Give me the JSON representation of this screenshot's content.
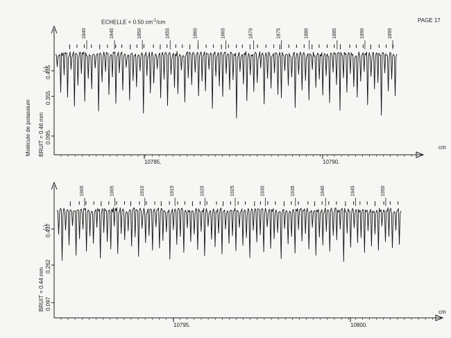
{
  "page": {
    "scale_label": "ECHELLE = 0.50 cm",
    "scale_superscript": "-1",
    "scale_suffix": "/cm",
    "page_label": "PAGE 17",
    "molecule_label": "Molécule de potassium",
    "x_unit": "cm"
  },
  "chart_data": [
    {
      "type": "line",
      "title": "",
      "noise_label": "BRUIT = 0.46 mm",
      "sign_label": "(-)",
      "xlabel": "cm",
      "ylabel": "",
      "x_ticks": [
        "10785.",
        "10790."
      ],
      "y_ticks": [
        "0.435",
        "0.355",
        "0.095"
      ],
      "lines": [
        "1840",
        "1845",
        "1850",
        "1855",
        "1860",
        "1865",
        "1870",
        "1875",
        "1880",
        "1885",
        "1890",
        "1895"
      ],
      "depths": [
        0.18,
        0.55,
        0.3,
        0.62,
        0.22,
        0.75,
        0.45,
        0.28,
        0.68,
        0.35,
        0.5,
        0.2,
        0.82,
        0.4,
        0.25,
        0.58,
        0.33,
        0.71,
        0.27,
        0.52,
        0.19,
        0.66,
        0.38,
        0.47,
        0.24,
        0.85,
        0.31,
        0.56,
        0.42,
        0.21,
        0.63,
        0.36,
        0.74,
        0.29,
        0.48,
        0.57,
        0.23,
        0.69,
        0.34,
        0.44,
        0.26,
        0.6,
        0.39,
        0.53,
        0.22,
        0.78,
        0.32,
        0.46,
        0.61,
        0.28,
        0.51,
        0.37,
        0.92,
        0.25,
        0.43,
        0.67,
        0.3,
        0.54,
        0.41,
        0.2,
        0.72,
        0.35,
        0.49,
        0.27,
        0.58,
        0.63,
        0.24,
        0.45,
        0.33,
        0.77,
        0.29,
        0.52,
        0.38,
        0.66,
        0.22,
        0.48,
        0.36,
        0.59,
        0.31,
        0.7,
        0.26,
        0.44,
        0.81,
        0.34,
        0.55,
        0.28,
        0.47,
        0.62,
        0.39,
        0.25,
        0.73,
        0.32,
        0.5,
        0.41,
        0.88,
        0.27,
        0.53,
        0.36,
        0.6
      ]
    },
    {
      "type": "line",
      "title": "",
      "noise_label": "BRUIT = 0.44 mm",
      "sign_label": "(-)",
      "xlabel": "cm",
      "ylabel": "",
      "x_ticks": [
        "10795.",
        "10800."
      ],
      "y_ticks": [
        "0.437",
        "0.262",
        "0.097"
      ],
      "lines": [
        "1900",
        "1905",
        "1910",
        "1915",
        "1920",
        "1925",
        "1930",
        "1935",
        "1940",
        "1945",
        "1950"
      ],
      "depths": [
        0.42,
        0.88,
        0.35,
        0.61,
        0.27,
        0.79,
        0.5,
        0.33,
        0.72,
        0.45,
        0.58,
        0.3,
        0.84,
        0.39,
        0.55,
        0.68,
        0.28,
        0.76,
        0.41,
        0.52,
        0.36,
        0.63,
        0.47,
        0.81,
        0.32,
        0.57,
        0.44,
        0.7,
        0.29,
        0.66,
        0.53,
        0.38,
        0.86,
        0.34,
        0.6,
        0.46,
        0.74,
        0.31,
        0.55,
        0.42,
        0.69,
        0.37,
        0.8,
        0.28,
        0.51,
        0.64,
        0.4,
        0.77,
        0.33,
        0.58,
        0.45,
        0.71,
        0.3,
        0.62,
        0.48,
        0.83,
        0.35,
        0.56,
        0.43,
        0.73,
        0.29,
        0.67,
        0.5,
        0.39,
        0.85,
        0.32,
        0.59,
        0.46,
        0.75,
        0.34,
        0.54,
        0.41,
        0.68,
        0.3,
        0.79,
        0.47,
        0.61,
        0.37,
        0.72,
        0.44,
        0.52,
        0.33,
        0.9,
        0.4,
        0.65,
        0.31,
        0.57,
        0.48,
        0.74,
        0.36,
        0.63,
        0.42,
        0.7,
        0.28,
        0.55,
        0.46,
        0.66,
        0.35,
        0.6
      ]
    }
  ]
}
